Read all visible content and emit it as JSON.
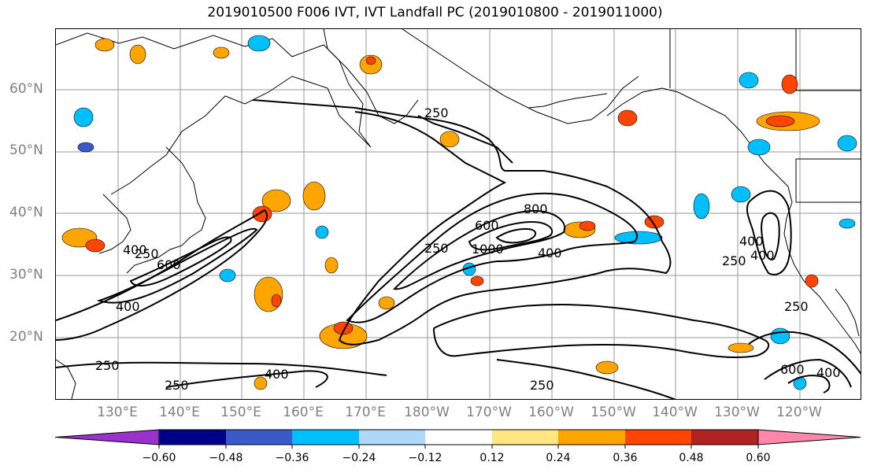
{
  "title": "2019010500 F006 IVT, IVT Landfall PC (2019010800 - 2019011000)",
  "lat_labels": [
    "60°N",
    "50°N",
    "40°N",
    "30°N",
    "20°N"
  ],
  "lon_labels": [
    "130°E",
    "140°E",
    "150°E",
    "160°E",
    "170°E",
    "180°W",
    "170°W",
    "160°W",
    "150°W",
    "140°W",
    "130°W",
    "120°W"
  ],
  "contour_labels": [
    "250",
    "600",
    "400",
    "250",
    "600",
    "800",
    "1000",
    "400",
    "250",
    "400",
    "250",
    "400",
    "250",
    "600",
    "400",
    "250",
    "400",
    "250",
    "400",
    "250"
  ],
  "colorbar": {
    "ticks": [
      "−0.60",
      "−0.48",
      "−0.36",
      "−0.24",
      "−0.12",
      "0.12",
      "0.24",
      "0.36",
      "0.48",
      "0.60"
    ],
    "colors": [
      "#9932CC",
      "#00008B",
      "#3A5BC7",
      "#00BFFF",
      "#ADD8F8",
      "#FFFFFF",
      "#FFE680",
      "#FFA500",
      "#FF4500",
      "#B22222",
      "#FF88AA"
    ]
  },
  "colors": {
    "grid": "#999999",
    "coast": "#000000",
    "contour": "#000000",
    "axis_label": "#808080"
  }
}
